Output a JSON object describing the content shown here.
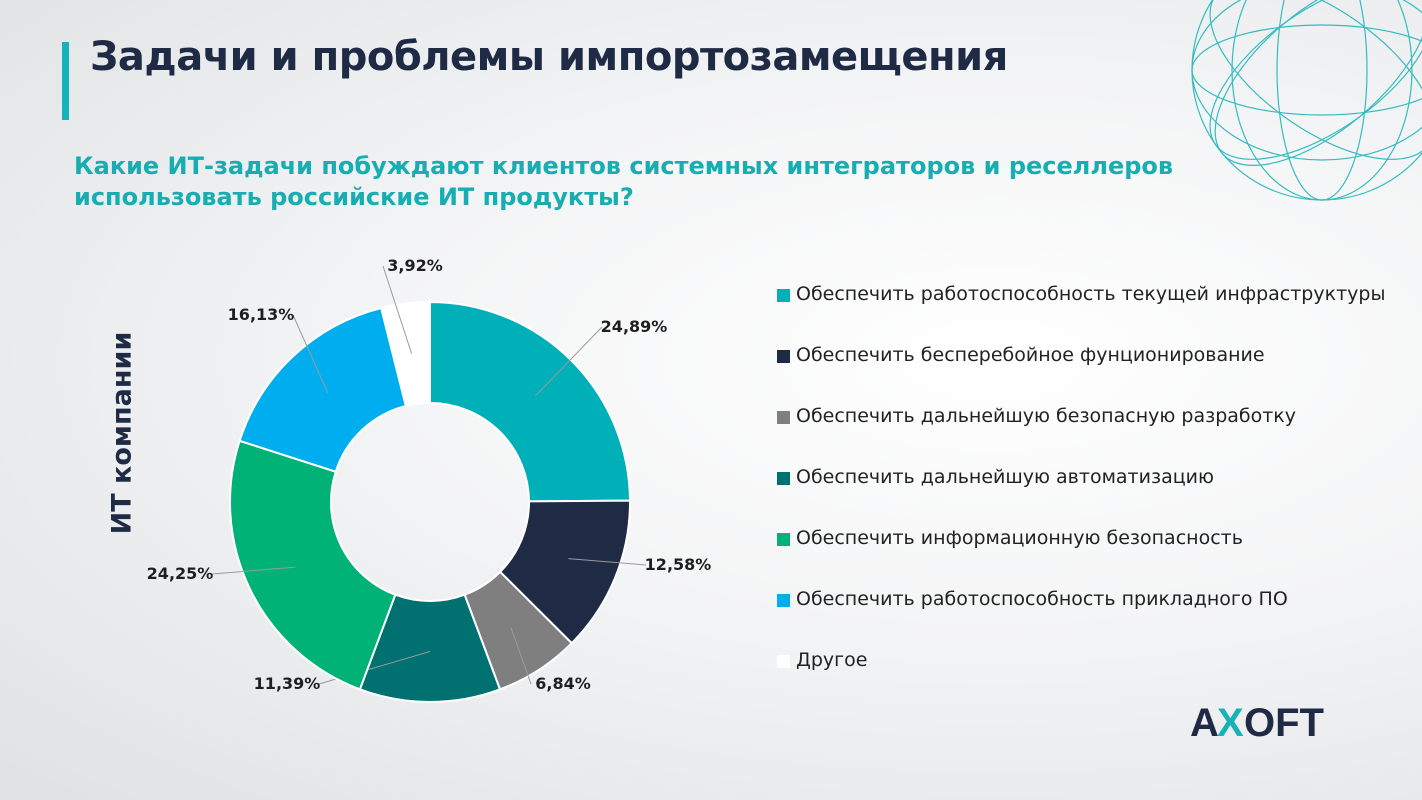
{
  "slide": {
    "title": "Задачи и проблемы импортозамещения",
    "question": "Какие ИТ-задачи побуждают клиентов системных интеграторов и реселлеров использовать российские ИТ продукты?",
    "side_label": "ИТ компании",
    "accent_color": "#13b3b8"
  },
  "logo": {
    "text": "AXOFT",
    "letters_left": "A",
    "letter_x": "X",
    "letters_right": "OFT",
    "color": "#1f2a44",
    "accent": "#13b3b8"
  },
  "chart_data": {
    "type": "pie",
    "variant": "donut",
    "legend_position": "right",
    "categories": [
      "Обеспечить работоспособность текущей инфраструктуры",
      "Обеспечить бесперебойное фунционирование",
      "Обеспечить дальнейшую безопасную разработку",
      "Обеспечить дальнейшую автоматизацию",
      "Обеспечить информационную безопасность",
      "Обеспечить работоспособность прикладного ПО",
      "Другое"
    ],
    "values": [
      24.89,
      12.58,
      6.84,
      11.39,
      24.25,
      16.13,
      3.92
    ],
    "data_labels": [
      "24,89%",
      "12,58%",
      "6,84%",
      "11,39%",
      "24,25%",
      "16,13%",
      "3,92%"
    ],
    "colors": [
      "#00b0b9",
      "#1f2a44",
      "#7f7f7f",
      "#007070",
      "#00b276",
      "#00aeef",
      "#ffffff"
    ]
  }
}
